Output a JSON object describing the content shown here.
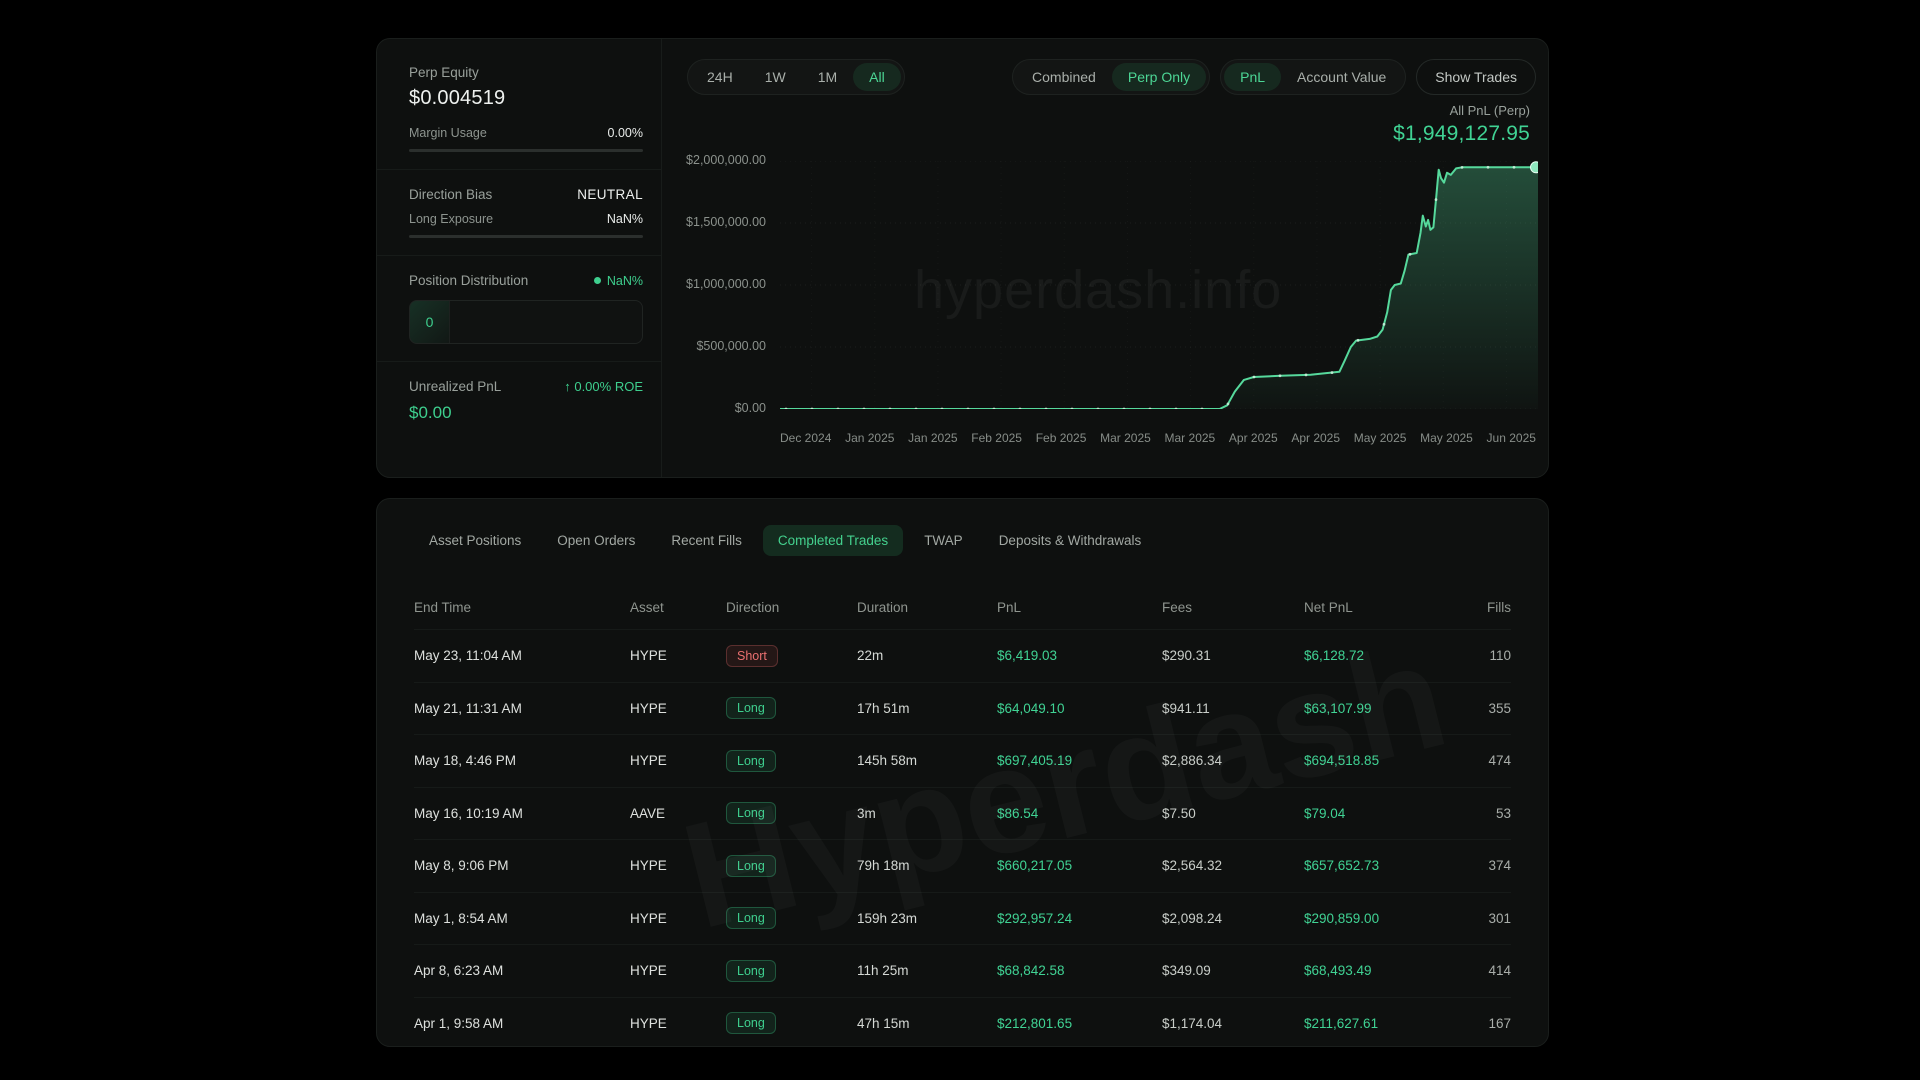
{
  "colors": {
    "accent_green": "#3ecf8e",
    "line_green": "#56d99c",
    "red": "#ea7070",
    "card_bg": "#0e100f"
  },
  "left_panel": {
    "perp_equity": {
      "label": "Perp Equity",
      "value": "$0.004519"
    },
    "margin_usage": {
      "label": "Margin Usage",
      "value": "0.00%"
    },
    "direction_bias": {
      "label": "Direction Bias",
      "value": "NEUTRAL"
    },
    "long_exposure": {
      "label": "Long Exposure",
      "value": "NaN%"
    },
    "position_distribution": {
      "label": "Position Distribution",
      "value": "NaN%",
      "segment_label": "0"
    },
    "unrealized_pnl": {
      "label": "Unrealized PnL",
      "roe_arrow": "↑",
      "roe": "0.00% ROE",
      "value": "$0.00"
    }
  },
  "chart_header": {
    "time_filters": [
      {
        "label": "24H",
        "active": false
      },
      {
        "label": "1W",
        "active": false
      },
      {
        "label": "1M",
        "active": false
      },
      {
        "label": "All",
        "active": true
      }
    ],
    "mode_toggle": [
      {
        "label": "Combined",
        "active": false
      },
      {
        "label": "Perp Only",
        "active": true
      }
    ],
    "metric_toggle": [
      {
        "label": "PnL",
        "active": true
      },
      {
        "label": "Account Value",
        "active": false
      }
    ],
    "show_trades_label": "Show Trades",
    "pnl_label": "All PnL (Perp)",
    "pnl_value": "$1,949,127.95"
  },
  "watermarks": {
    "chart": "hyperdash.info",
    "table": "Hyperdash"
  },
  "chart_data": {
    "type": "area",
    "title": "All PnL (Perp)",
    "current_value": 1949127.95,
    "ylim": [
      0,
      2000000
    ],
    "y_ticks": [
      "$2,000,000.00",
      "$1,500,000.00",
      "$1,000,000.00",
      "$500,000.00",
      "$0.00"
    ],
    "x_ticks": [
      "Dec 2024",
      "Jan 2025",
      "Jan 2025",
      "Feb 2025",
      "Feb 2025",
      "Mar 2025",
      "Mar 2025",
      "Apr 2025",
      "Apr 2025",
      "May 2025",
      "May 2025",
      "Jun 2025"
    ],
    "grid": true,
    "legend": false,
    "series": [
      {
        "name": "All PnL (Perp)",
        "points": [
          [
            0.0,
            0
          ],
          [
            0.58,
            0
          ],
          [
            0.59,
            30000
          ],
          [
            0.6,
            140000
          ],
          [
            0.612,
            235000
          ],
          [
            0.625,
            258000
          ],
          [
            0.66,
            268000
          ],
          [
            0.7,
            276000
          ],
          [
            0.738,
            300000
          ],
          [
            0.745,
            390000
          ],
          [
            0.753,
            500000
          ],
          [
            0.76,
            552000
          ],
          [
            0.778,
            565000
          ],
          [
            0.788,
            585000
          ],
          [
            0.795,
            640000
          ],
          [
            0.801,
            780000
          ],
          [
            0.806,
            960000
          ],
          [
            0.811,
            1000000
          ],
          [
            0.819,
            1012000
          ],
          [
            0.824,
            1115000
          ],
          [
            0.829,
            1245000
          ],
          [
            0.84,
            1258000
          ],
          [
            0.845,
            1420000
          ],
          [
            0.848,
            1560000
          ],
          [
            0.852,
            1472000
          ],
          [
            0.855,
            1525000
          ],
          [
            0.858,
            1445000
          ],
          [
            0.862,
            1465000
          ],
          [
            0.866,
            1725000
          ],
          [
            0.869,
            1930000
          ],
          [
            0.872,
            1862000
          ],
          [
            0.876,
            1825000
          ],
          [
            0.88,
            1905000
          ],
          [
            0.885,
            1888000
          ],
          [
            0.892,
            1940000
          ],
          [
            0.9,
            1949128
          ],
          [
            1.0,
            1949128
          ]
        ]
      }
    ]
  },
  "tabs": [
    {
      "label": "Asset Positions",
      "active": false
    },
    {
      "label": "Open Orders",
      "active": false
    },
    {
      "label": "Recent Fills",
      "active": false
    },
    {
      "label": "Completed Trades",
      "active": true
    },
    {
      "label": "TWAP",
      "active": false
    },
    {
      "label": "Deposits & Withdrawals",
      "active": false
    }
  ],
  "table": {
    "columns": [
      "End Time",
      "Asset",
      "Direction",
      "Duration",
      "PnL",
      "Fees",
      "Net PnL",
      "Fills"
    ],
    "rows": [
      {
        "end_time": "May 23, 11:04 AM",
        "asset": "HYPE",
        "direction": "Short",
        "duration": "22m",
        "pnl": "$6,419.03",
        "fees": "$290.31",
        "net_pnl": "$6,128.72",
        "fills": "110"
      },
      {
        "end_time": "May 21, 11:31 AM",
        "asset": "HYPE",
        "direction": "Long",
        "duration": "17h 51m",
        "pnl": "$64,049.10",
        "fees": "$941.11",
        "net_pnl": "$63,107.99",
        "fills": "355"
      },
      {
        "end_time": "May 18, 4:46 PM",
        "asset": "HYPE",
        "direction": "Long",
        "duration": "145h 58m",
        "pnl": "$697,405.19",
        "fees": "$2,886.34",
        "net_pnl": "$694,518.85",
        "fills": "474"
      },
      {
        "end_time": "May 16, 10:19 AM",
        "asset": "AAVE",
        "direction": "Long",
        "duration": "3m",
        "pnl": "$86.54",
        "fees": "$7.50",
        "net_pnl": "$79.04",
        "fills": "53"
      },
      {
        "end_time": "May 8, 9:06 PM",
        "asset": "HYPE",
        "direction": "Long",
        "duration": "79h 18m",
        "pnl": "$660,217.05",
        "fees": "$2,564.32",
        "net_pnl": "$657,652.73",
        "fills": "374"
      },
      {
        "end_time": "May 1, 8:54 AM",
        "asset": "HYPE",
        "direction": "Long",
        "duration": "159h 23m",
        "pnl": "$292,957.24",
        "fees": "$2,098.24",
        "net_pnl": "$290,859.00",
        "fills": "301"
      },
      {
        "end_time": "Apr 8, 6:23 AM",
        "asset": "HYPE",
        "direction": "Long",
        "duration": "11h 25m",
        "pnl": "$68,842.58",
        "fees": "$349.09",
        "net_pnl": "$68,493.49",
        "fills": "414"
      },
      {
        "end_time": "Apr 1, 9:58 AM",
        "asset": "HYPE",
        "direction": "Long",
        "duration": "47h 15m",
        "pnl": "$212,801.65",
        "fees": "$1,174.04",
        "net_pnl": "$211,627.61",
        "fills": "167"
      }
    ]
  }
}
